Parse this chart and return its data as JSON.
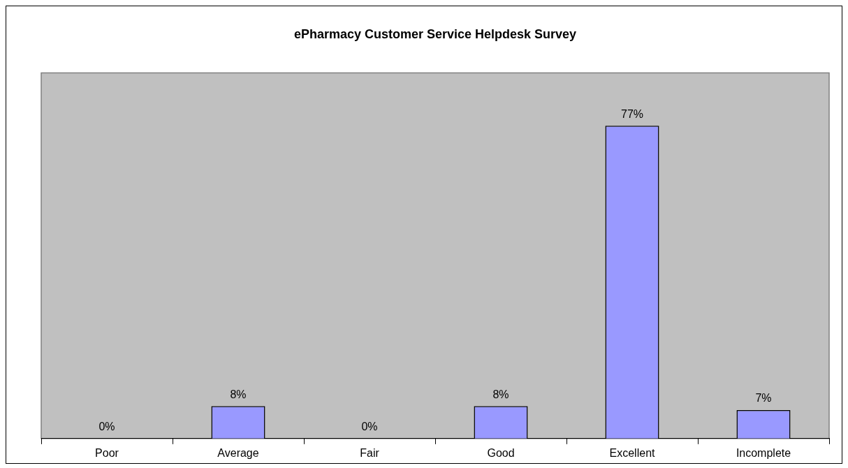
{
  "chart_data": {
    "type": "bar",
    "title": "ePharmacy Customer Service Helpdesk Survey",
    "categories": [
      "Poor",
      "Average",
      "Fair",
      "Good",
      "Excellent",
      "Incomplete"
    ],
    "values": [
      0,
      8,
      0,
      8,
      77,
      7
    ],
    "color": "#9999ff",
    "ylim": [
      0,
      90
    ],
    "tick_labels": "x",
    "value_labels": [
      "0%",
      "8%",
      "0%",
      "8%",
      "77%",
      "7%"
    ],
    "grid": false,
    "legend": false
  }
}
